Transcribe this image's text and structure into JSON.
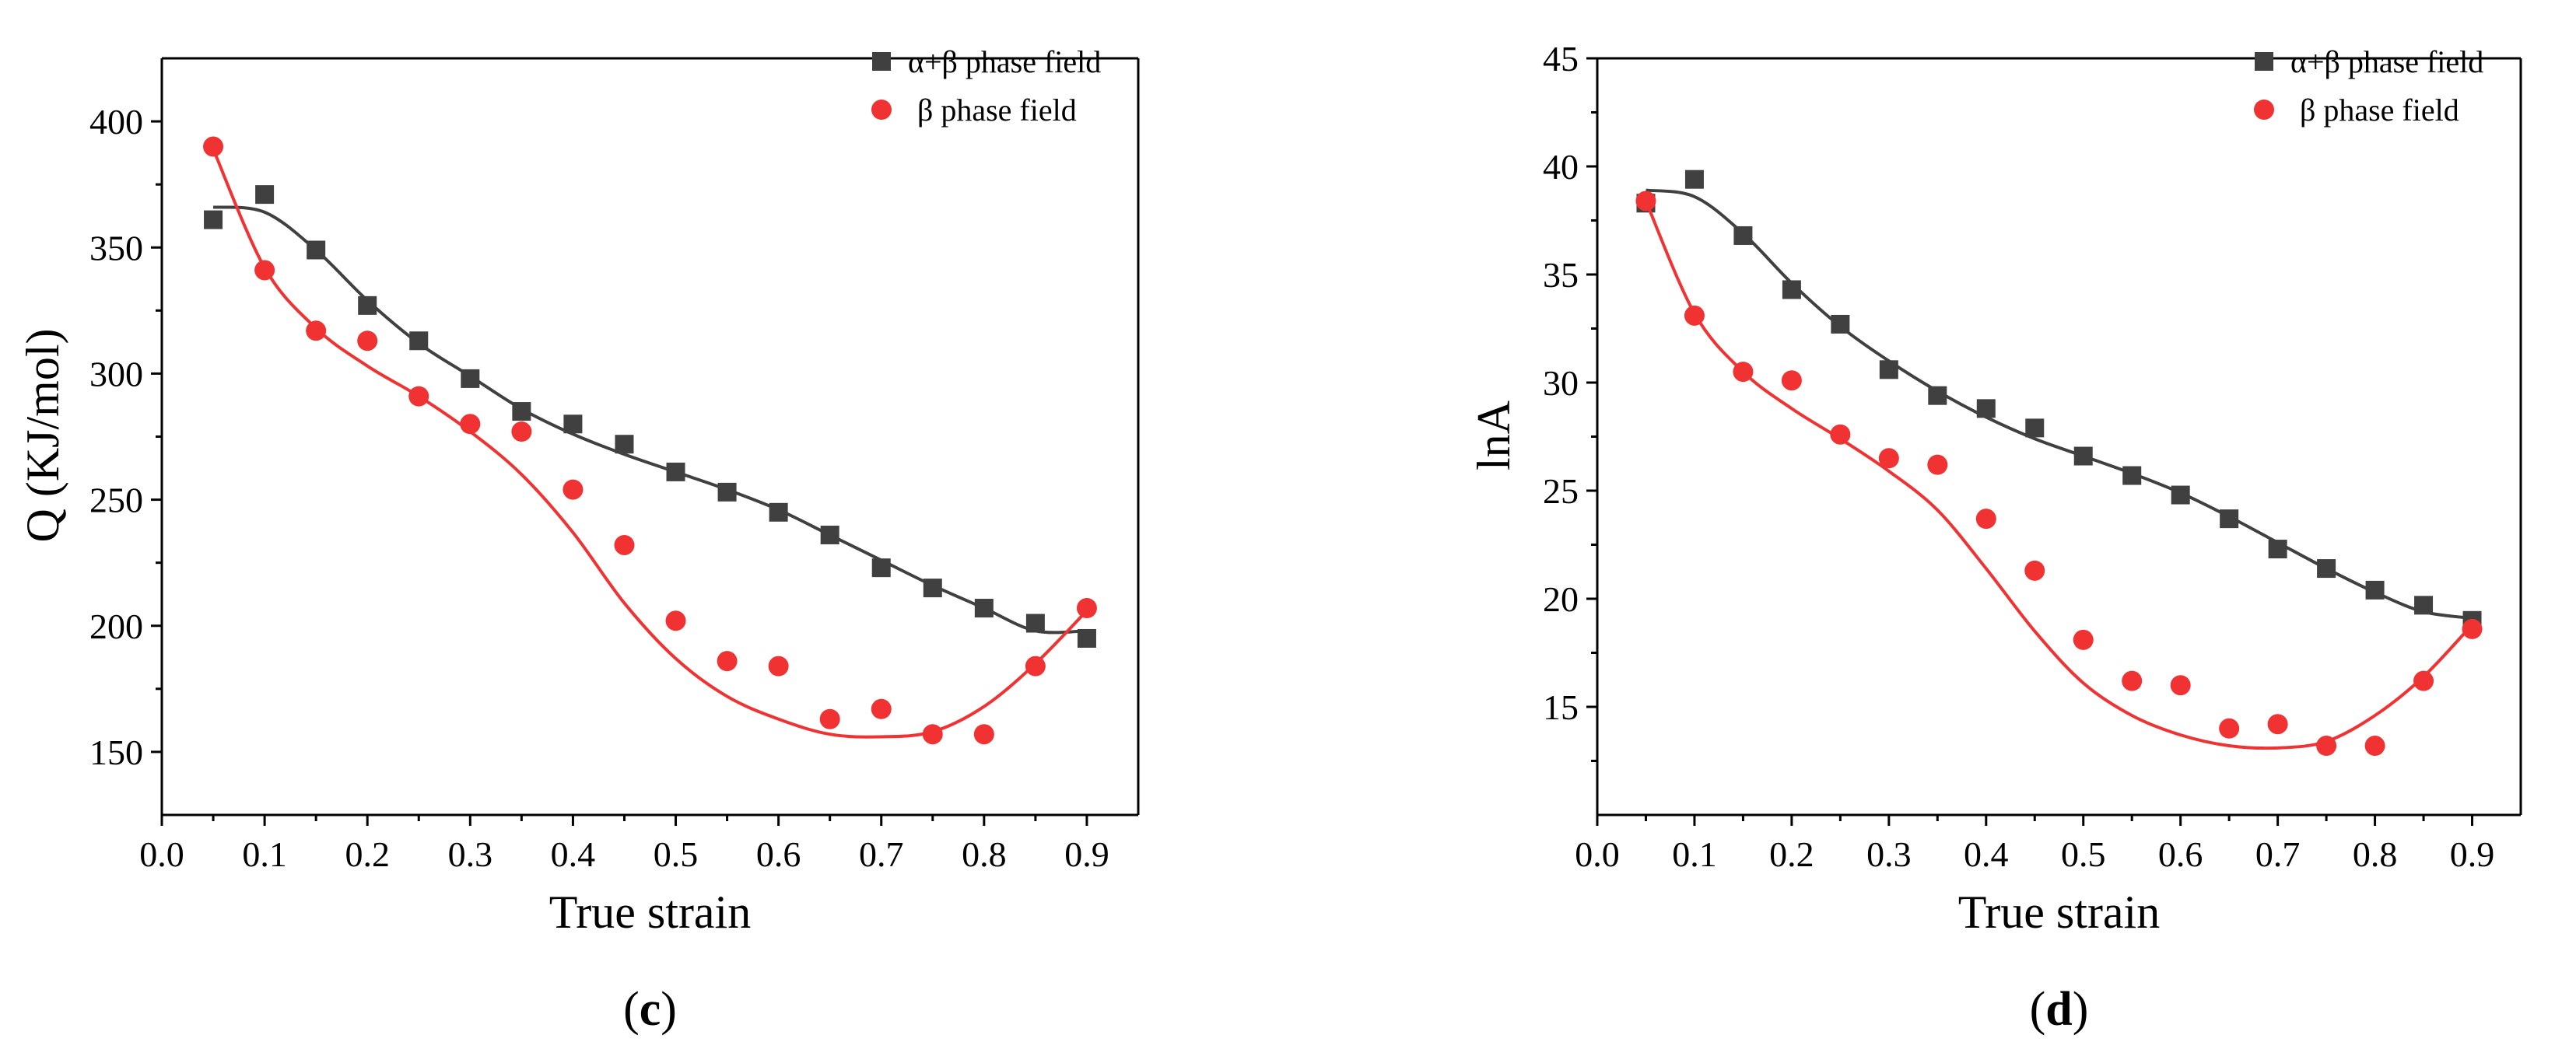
{
  "chart_data": [
    {
      "type": "scatter",
      "panel_label": "c",
      "xlabel": "True strain",
      "ylabel": "Q (KJ/mol)",
      "xlim": [
        0.0,
        0.95
      ],
      "ylim": [
        125,
        425
      ],
      "xticks": [
        "0.0",
        "0.1",
        "0.2",
        "0.3",
        "0.4",
        "0.5",
        "0.6",
        "0.7",
        "0.8",
        "0.9"
      ],
      "yticks": [
        "150",
        "200",
        "250",
        "300",
        "350",
        "400"
      ],
      "legend_position": "top-right",
      "colors": {
        "alpha_beta": "#404040",
        "beta": "#f03232"
      },
      "x": [
        0.05,
        0.1,
        0.15,
        0.2,
        0.25,
        0.3,
        0.35,
        0.4,
        0.45,
        0.5,
        0.55,
        0.6,
        0.65,
        0.7,
        0.75,
        0.8,
        0.85,
        0.9
      ],
      "series": [
        {
          "name": "α+β phase field",
          "marker": "square",
          "values": [
            361,
            371,
            349,
            327,
            313,
            298,
            285,
            280,
            272,
            261,
            253,
            245,
            236,
            223,
            215,
            207,
            201,
            195
          ],
          "fit": [
            366,
            364,
            349,
            329,
            312,
            299,
            286,
            276,
            268,
            261,
            254,
            246,
            236,
            226,
            216,
            207,
            198,
            198
          ]
        },
        {
          "name": "β phase field",
          "marker": "circle",
          "values": [
            390,
            341,
            317,
            313,
            291,
            280,
            277,
            254,
            232,
            202,
            186,
            184,
            163,
            167,
            157,
            157,
            184,
            207
          ],
          "fit": [
            389,
            342,
            318,
            303,
            291,
            277,
            260,
            237,
            209,
            187,
            172,
            163,
            157,
            156,
            158,
            168,
            185,
            206
          ]
        }
      ]
    },
    {
      "type": "scatter",
      "panel_label": "d",
      "xlabel": "True strain",
      "ylabel": "lnA",
      "xlim": [
        0.0,
        0.95
      ],
      "ylim": [
        10,
        45
      ],
      "xticks": [
        "0.0",
        "0.1",
        "0.2",
        "0.3",
        "0.4",
        "0.5",
        "0.6",
        "0.7",
        "0.8",
        "0.9"
      ],
      "yticks": [
        "15",
        "20",
        "25",
        "30",
        "35",
        "40",
        "45"
      ],
      "legend_position": "top-right",
      "colors": {
        "alpha_beta": "#404040",
        "beta": "#f03232"
      },
      "x": [
        0.05,
        0.1,
        0.15,
        0.2,
        0.25,
        0.3,
        0.35,
        0.4,
        0.45,
        0.5,
        0.55,
        0.6,
        0.65,
        0.7,
        0.75,
        0.8,
        0.85,
        0.9
      ],
      "series": [
        {
          "name": "α+β phase field",
          "marker": "square",
          "values": [
            38.3,
            39.4,
            36.8,
            34.3,
            32.7,
            30.6,
            29.4,
            28.8,
            27.9,
            26.6,
            25.7,
            24.8,
            23.7,
            22.3,
            21.4,
            20.4,
            19.7,
            19.0
          ],
          "fit": [
            38.9,
            38.6,
            36.9,
            34.6,
            32.6,
            31.0,
            29.6,
            28.4,
            27.4,
            26.6,
            25.8,
            24.9,
            23.8,
            22.6,
            21.4,
            20.3,
            19.4,
            19.1
          ]
        },
        {
          "name": "β phase field",
          "marker": "circle",
          "values": [
            38.4,
            33.1,
            30.5,
            30.1,
            27.6,
            26.5,
            26.2,
            23.7,
            21.3,
            18.1,
            16.2,
            16.0,
            14.0,
            14.2,
            13.2,
            13.2,
            16.2,
            18.6
          ],
          "fit": [
            38.4,
            33.2,
            30.5,
            28.8,
            27.4,
            25.9,
            24.1,
            21.4,
            18.5,
            16.1,
            14.6,
            13.7,
            13.2,
            13.1,
            13.4,
            14.6,
            16.4,
            18.8
          ]
        }
      ]
    }
  ]
}
